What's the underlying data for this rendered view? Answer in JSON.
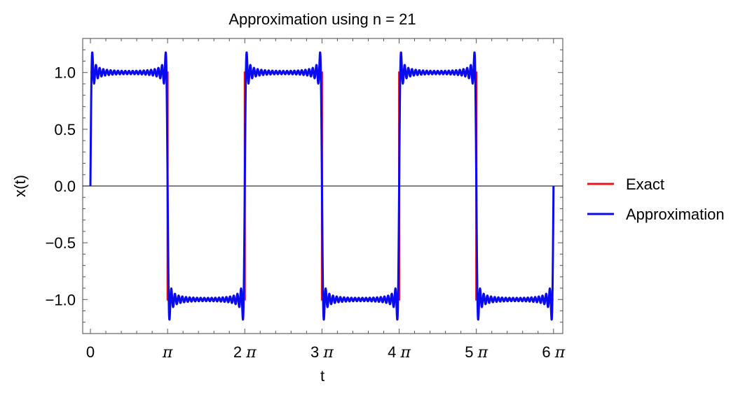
{
  "chart_data": {
    "type": "line",
    "title": "Approximation using n = 21",
    "xlabel": "t",
    "ylabel": "x(t)",
    "xlim_pi": [
      -0.1,
      6.12
    ],
    "ylim": [
      -1.3,
      1.3
    ],
    "x_unit": "π",
    "xticks": [
      {
        "value_pi": 0,
        "label": "0"
      },
      {
        "value_pi": 1,
        "label": "π"
      },
      {
        "value_pi": 2,
        "label": "2 π"
      },
      {
        "value_pi": 3,
        "label": "3 π"
      },
      {
        "value_pi": 4,
        "label": "4 π"
      },
      {
        "value_pi": 5,
        "label": "5 π"
      },
      {
        "value_pi": 6,
        "label": "6 π"
      }
    ],
    "yticks": [
      {
        "value": 1.0,
        "label": "1.0"
      },
      {
        "value": 0.5,
        "label": "0.5"
      },
      {
        "value": 0.0,
        "label": "0.0"
      },
      {
        "value": -0.5,
        "label": "−0.5"
      },
      {
        "value": -1.0,
        "label": "−1.0"
      }
    ],
    "grid": false,
    "legend_position": "right",
    "series": [
      {
        "name": "Exact",
        "color": "#e8141e",
        "kind": "square_wave",
        "domain_pi": [
          0,
          6
        ],
        "points": [
          [
            0,
            1
          ],
          [
            1,
            1
          ],
          [
            1,
            -1
          ],
          [
            2,
            -1
          ],
          [
            2,
            1
          ],
          [
            3,
            1
          ],
          [
            3,
            -1
          ],
          [
            4,
            -1
          ],
          [
            4,
            1
          ],
          [
            5,
            1
          ],
          [
            5,
            -1
          ],
          [
            6,
            -1
          ]
        ]
      },
      {
        "name": "Approximation",
        "color": "#0a0af0",
        "kind": "fourier_square_wave",
        "domain_pi": [
          0,
          6
        ],
        "odd_harmonics_up_to": 41,
        "overshoot_peak": 1.18
      }
    ]
  }
}
